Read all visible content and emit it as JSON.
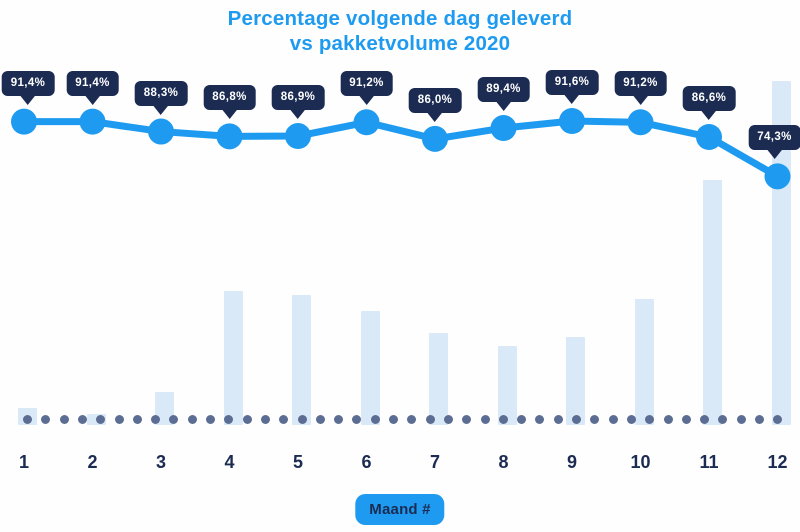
{
  "title": {
    "line1": "Percentage volgende dag geleverd",
    "line2": "vs pakketvolume 2020"
  },
  "x_axis_label_badge": "Maand #",
  "chart_data": {
    "type": "combo line + bar",
    "title": "Percentage volgende dag geleverd vs pakketvolume 2020",
    "xlabel": "Maand #",
    "ylabel": "",
    "legend_position": "none",
    "grid": "off",
    "baseline_style": "dotted",
    "categories": [
      "1",
      "2",
      "3",
      "4",
      "5",
      "6",
      "7",
      "8",
      "9",
      "10",
      "11",
      "12"
    ],
    "series": [
      {
        "name": "Percentage volgende dag geleverd",
        "type": "line",
        "unit": "%",
        "values": [
          91.4,
          91.4,
          88.3,
          86.8,
          86.9,
          91.2,
          86.0,
          89.4,
          91.6,
          91.2,
          86.6,
          74.3
        ],
        "labels": [
          "91,4%",
          "91,4%",
          "88,3%",
          "86,8%",
          "86,9%",
          "91,2%",
          "86,0%",
          "89,4%",
          "91,6%",
          "91,2%",
          "86,6%",
          "74,3%"
        ]
      },
      {
        "name": "Pakketvolume 2020",
        "type": "bar",
        "unit": "relative, max month = 100",
        "values": [
          4.9,
          3.2,
          9.6,
          39.0,
          37.8,
          33.1,
          26.7,
          23.0,
          25.6,
          36.6,
          71.2,
          100
        ]
      }
    ]
  },
  "colors": {
    "accent_blue": "#1e9bf0",
    "navy": "#1b2b52",
    "bar_fill": "#d9e9f8",
    "baseline_dot": "#5c6d93",
    "callout_text": "#ffffff",
    "background": "#fefefe"
  }
}
